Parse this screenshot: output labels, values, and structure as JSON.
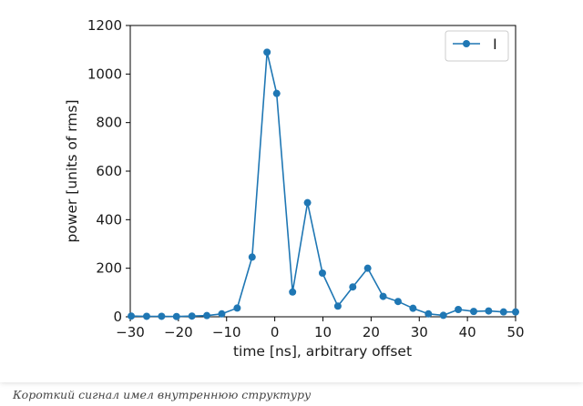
{
  "chart_data": {
    "type": "line",
    "title": "",
    "xlabel": "time [ns], arbitrary offset",
    "ylabel": "power [units of rms]",
    "xlim": [
      -30,
      50
    ],
    "ylim": [
      0,
      1200
    ],
    "xticks": [
      -30,
      -20,
      -10,
      0,
      10,
      20,
      30,
      40,
      50
    ],
    "yticks": [
      0,
      200,
      400,
      600,
      800,
      1000,
      1200
    ],
    "xtick_labels": [
      "−30",
      "−20",
      "−10",
      "0",
      "10",
      "20",
      "30",
      "40",
      "50"
    ],
    "ytick_labels": [
      "0",
      "200",
      "400",
      "600",
      "800",
      "1000",
      "1200"
    ],
    "grid": false,
    "legend": {
      "position": "top-right",
      "entries": [
        "I"
      ]
    },
    "series": [
      {
        "name": "I",
        "color": "#1f77b4",
        "marker": "circle",
        "x": [
          -29.8,
          -26.6,
          -23.5,
          -20.4,
          -17.2,
          -14.1,
          -11.0,
          -7.8,
          -4.7,
          -1.6,
          0.4,
          3.7,
          6.8,
          9.9,
          13.1,
          16.2,
          19.3,
          22.5,
          25.6,
          28.7,
          31.9,
          35.0,
          38.1,
          41.3,
          44.4,
          47.5,
          50.0
        ],
        "values": [
          3,
          2,
          2,
          1,
          3,
          5,
          12,
          36,
          246,
          1090,
          920,
          102,
          470,
          180,
          44,
          123,
          200,
          84,
          63,
          35,
          12,
          6,
          30,
          22,
          24,
          20,
          20
        ]
      }
    ]
  },
  "caption": "Короткий сигнал имел внутреннюю структуру"
}
